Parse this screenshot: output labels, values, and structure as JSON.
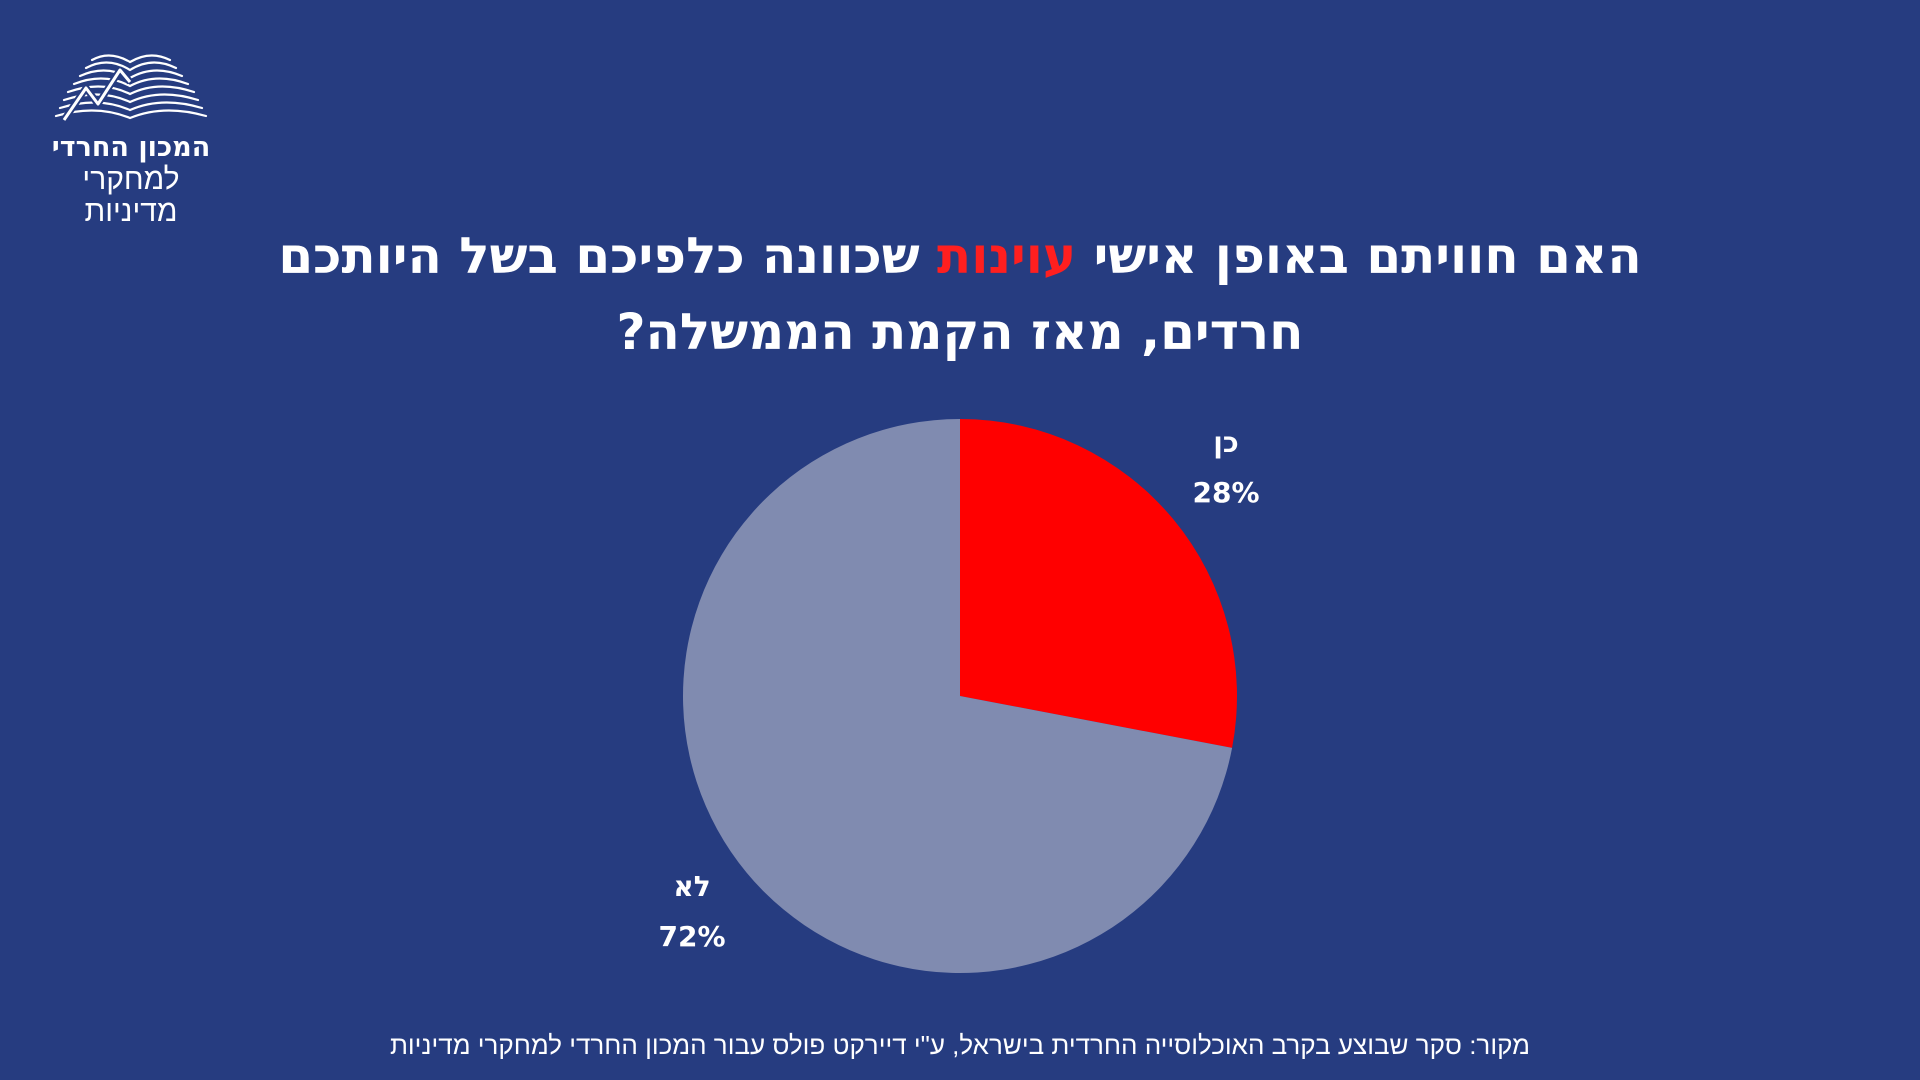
{
  "logo": {
    "icon": "open-book-chart-icon",
    "line1": "המכון החרדי",
    "line2": "למחקרי מדיניות"
  },
  "title": {
    "part1": "האם חוויתם באופן אישי",
    "highlight": "עוינות",
    "part2": "שכוונה כלפיכם בשל היותכם",
    "line2": "חרדים, מאז הקמת הממשלה?"
  },
  "colors": {
    "background": "#263c80",
    "accent": "#ff0000",
    "no_slice": "#808bb0"
  },
  "chart_data": {
    "type": "pie",
    "categories": [
      "כן",
      "לא"
    ],
    "values": [
      28,
      72
    ],
    "value_labels": [
      "28%",
      "72%"
    ],
    "colors": [
      "#ff0000",
      "#808bb0"
    ]
  },
  "source": "מקור: סקר שבוצע בקרב האוכלוסייה החרדית בישראל,  ע\"י דיירקט פולס עבור המכון החרדי למחקרי מדיניות"
}
